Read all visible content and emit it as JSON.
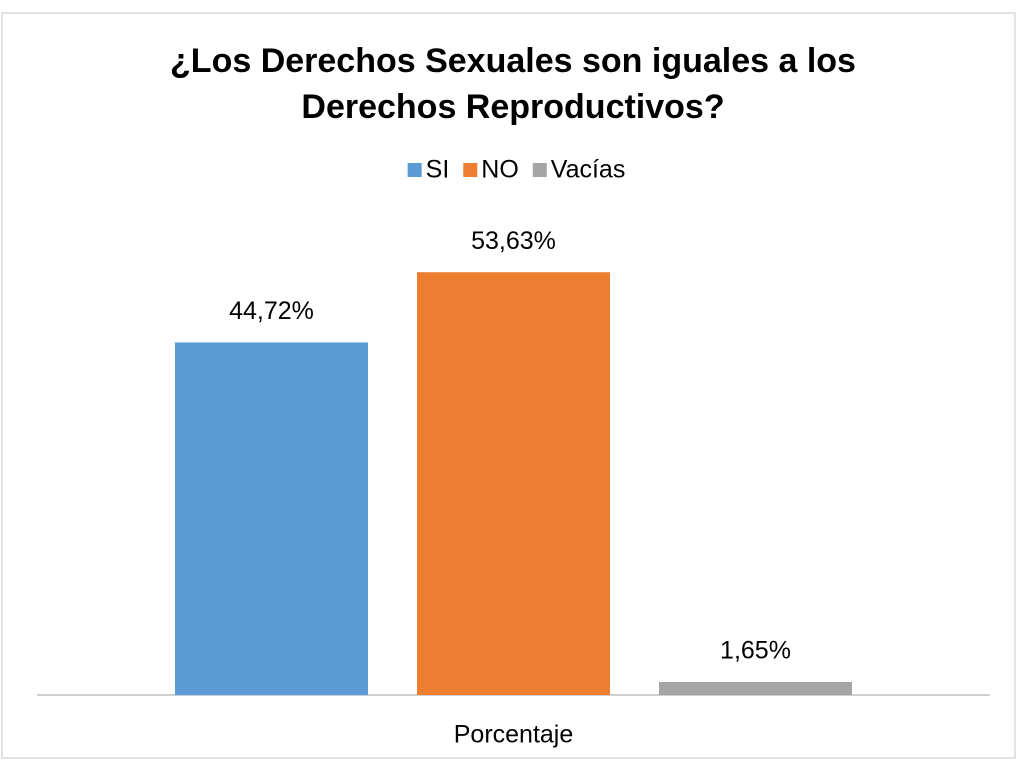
{
  "chart_data": {
    "type": "bar",
    "title": "¿Los Derechos Sexuales son iguales a los Derechos Reproductivos?",
    "categories": [
      "Porcentaje"
    ],
    "series": [
      {
        "name": "SI",
        "color": "#5b9bd5",
        "values": [
          44.72
        ],
        "value_labels": [
          "44,72%"
        ]
      },
      {
        "name": "NO",
        "color": "#ed7d31",
        "values": [
          53.63
        ],
        "value_labels": [
          "53,63%"
        ]
      },
      {
        "name": "Vacías",
        "color": "#a5a5a5",
        "values": [
          1.65
        ],
        "value_labels": [
          "1,65%"
        ]
      }
    ],
    "ylim": [
      0,
      60
    ],
    "legend": "top"
  }
}
